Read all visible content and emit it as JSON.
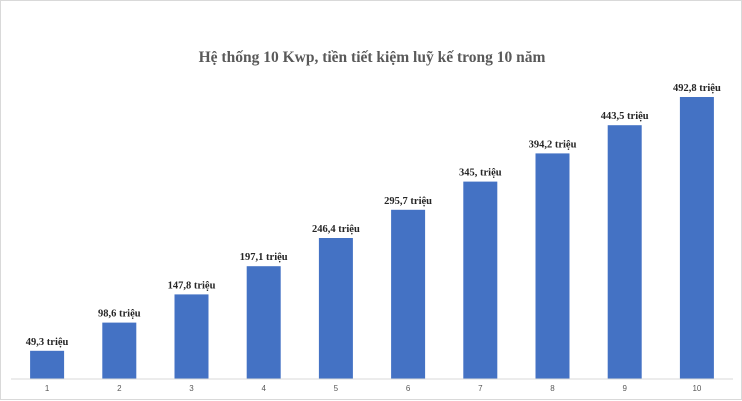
{
  "chart_data": {
    "type": "bar",
    "title": "Hệ thống 10 Kwp, tiền tiết kiệm luỹ kế trong 10 năm",
    "xlabel": "",
    "ylabel": "",
    "categories": [
      "1",
      "2",
      "3",
      "4",
      "5",
      "6",
      "7",
      "8",
      "9",
      "10"
    ],
    "values": [
      49.3,
      98.6,
      147.8,
      197.1,
      246.4,
      295.7,
      345,
      394.2,
      443.5,
      492.8
    ],
    "data_labels": [
      "49,3 triệu",
      "98,6 triệu",
      "147,8 triệu",
      "197,1 triệu",
      "246,4 triệu",
      "295,7 triệu",
      "345, triệu",
      "394,2 triệu",
      "443,5 triệu",
      "492,8 triệu"
    ],
    "ylim": [
      0,
      492.8
    ],
    "grid": false,
    "legend": "none",
    "bar_color": "#4472c4"
  }
}
